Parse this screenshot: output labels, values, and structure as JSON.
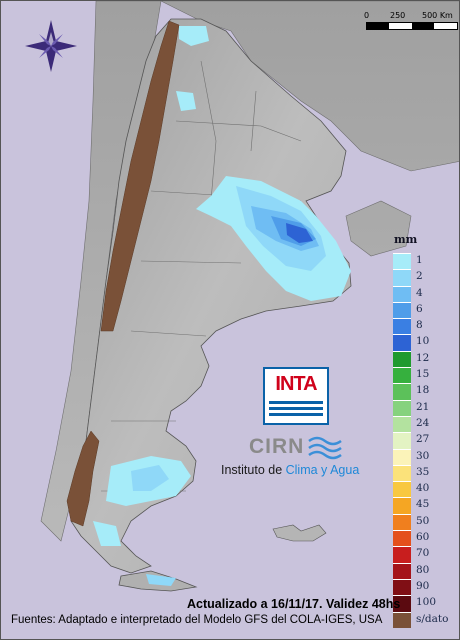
{
  "scale_bar": {
    "labels": [
      "0",
      "250",
      "500 Km"
    ]
  },
  "legend": {
    "unit": "mm",
    "items": [
      {
        "label": "1",
        "color": "#a6ecf9"
      },
      {
        "label": "2",
        "color": "#8fd8f8"
      },
      {
        "label": "4",
        "color": "#6fbdf3"
      },
      {
        "label": "6",
        "color": "#4f9de9"
      },
      {
        "label": "8",
        "color": "#3a7fe3"
      },
      {
        "label": "10",
        "color": "#2d63d4"
      },
      {
        "label": "12",
        "color": "#1f9a2e"
      },
      {
        "label": "15",
        "color": "#36b03e"
      },
      {
        "label": "18",
        "color": "#5cc15a"
      },
      {
        "label": "21",
        "color": "#86d27e"
      },
      {
        "label": "24",
        "color": "#b3e29f"
      },
      {
        "label": "27",
        "color": "#e3f3c3"
      },
      {
        "label": "30",
        "color": "#fbf3b9"
      },
      {
        "label": "35",
        "color": "#fbe27a"
      },
      {
        "label": "40",
        "color": "#f8c840"
      },
      {
        "label": "45",
        "color": "#f5a623"
      },
      {
        "label": "50",
        "color": "#f07f1e"
      },
      {
        "label": "60",
        "color": "#e4501c"
      },
      {
        "label": "70",
        "color": "#c81e1e"
      },
      {
        "label": "80",
        "color": "#a5141a"
      },
      {
        "label": "90",
        "color": "#800f15"
      },
      {
        "label": "100",
        "color": "#5b0a10"
      },
      {
        "label": "s/dato",
        "color": "#7a5138"
      }
    ]
  },
  "logos": {
    "inta": "INTA",
    "cirn": "CIRN",
    "institute_prefix": "Instituto de ",
    "institute_accent": "Clima y Agua"
  },
  "footer": {
    "updated": "Actualizado a 16/11/17. Validez 48hs",
    "sources": "Fuentes: Adaptado e interpretado del Modelo GFS del COLA-IGES, USA"
  },
  "colors": {
    "background": "#c9c3dc",
    "land": "#b3b3b3",
    "no_data": "#7a5138",
    "inta_red": "#d0021b",
    "inta_blue": "#0a62a8"
  },
  "icons": {
    "compass": "compass-rose-icon"
  }
}
